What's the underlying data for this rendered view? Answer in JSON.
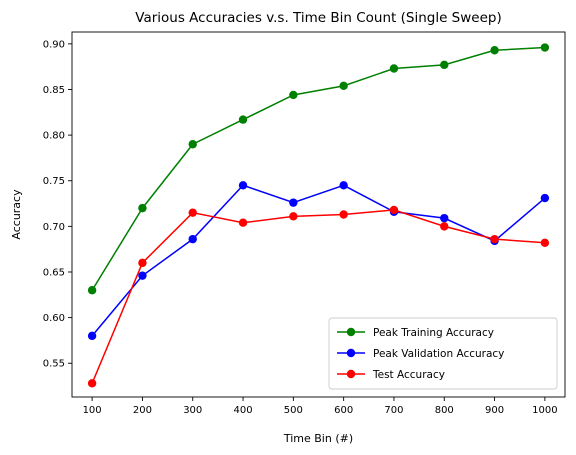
{
  "chart_data": {
    "type": "line",
    "title": "Various Accuracies v.s. Time Bin Count (Single Sweep)",
    "xlabel": "Time Bin (#)",
    "ylabel": "Accuracy",
    "x": [
      100,
      200,
      300,
      400,
      500,
      600,
      700,
      800,
      900,
      1000
    ],
    "xticks": [
      100,
      200,
      300,
      400,
      500,
      600,
      700,
      800,
      900,
      1000
    ],
    "yticks": [
      0.55,
      0.6,
      0.65,
      0.7,
      0.75,
      0.8,
      0.85,
      0.9
    ],
    "xlim": [
      60,
      1040
    ],
    "ylim": [
      0.513,
      0.913
    ],
    "grid": false,
    "legend_position": "lower-right",
    "series": [
      {
        "name": "Peak Training Accuracy",
        "color": "#008000",
        "values": [
          0.63,
          0.72,
          0.79,
          0.817,
          0.844,
          0.854,
          0.873,
          0.877,
          0.893,
          0.896
        ]
      },
      {
        "name": "Peak Validation Accuracy",
        "color": "#0000ff",
        "values": [
          0.58,
          0.646,
          0.686,
          0.745,
          0.726,
          0.745,
          0.716,
          0.709,
          0.684,
          0.731
        ]
      },
      {
        "name": "Test Accuracy",
        "color": "#ff0000",
        "values": [
          0.528,
          0.66,
          0.715,
          0.704,
          0.711,
          0.713,
          0.718,
          0.7,
          0.686,
          0.682
        ]
      }
    ]
  }
}
